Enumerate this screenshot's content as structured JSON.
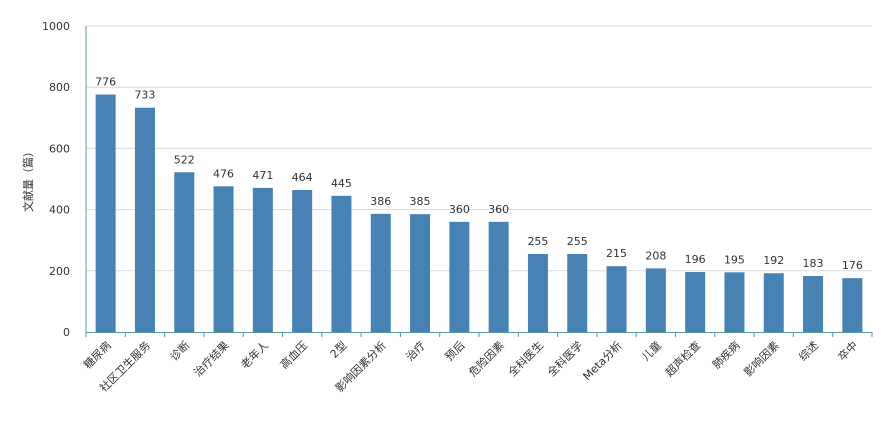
{
  "chart_data": {
    "type": "bar",
    "ylabel": "文献量（篇）",
    "xlabel": "",
    "ylim": [
      0,
      1000
    ],
    "yticks": [
      0,
      200,
      400,
      600,
      800,
      1000
    ],
    "grid": true,
    "color": "#4682b4",
    "categories": [
      "糖尿病",
      "社区卫生服务",
      "诊断",
      "治疗结果",
      "老年人",
      "高血压",
      "2型",
      "影响因素分析",
      "治疗",
      "预后",
      "危险因素",
      "全科医生",
      "全科医学",
      "Meta分析",
      "儿童",
      "超声检查",
      "肺疾病",
      "影响因素",
      "综述",
      "卒中"
    ],
    "values": [
      776,
      733,
      522,
      476,
      471,
      464,
      445,
      386,
      385,
      360,
      360,
      255,
      255,
      215,
      208,
      196,
      195,
      192,
      183,
      176
    ]
  }
}
